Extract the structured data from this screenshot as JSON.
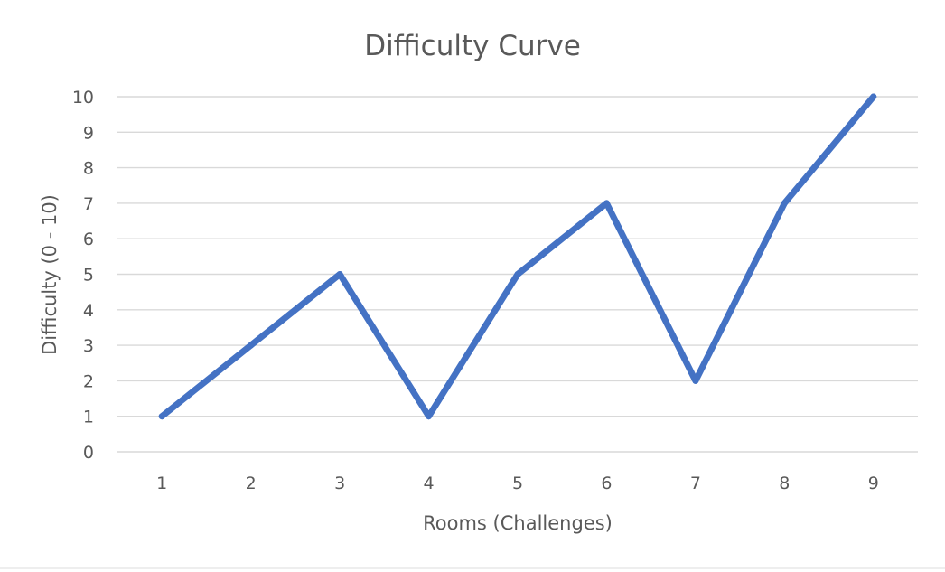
{
  "chart_data": {
    "type": "line",
    "title": "Difficulty Curve",
    "xlabel": "Rooms (Challenges)",
    "ylabel": "Difficulty (0 - 10)",
    "categories": [
      "1",
      "2",
      "3",
      "4",
      "5",
      "6",
      "7",
      "8",
      "9"
    ],
    "series": [
      {
        "values": [
          1,
          3,
          5,
          1,
          5,
          7,
          2,
          7,
          10
        ],
        "color": "#4472c4"
      }
    ],
    "ylim": [
      0,
      10
    ],
    "yticks": [
      "0",
      "1",
      "2",
      "3",
      "4",
      "5",
      "6",
      "7",
      "8",
      "9",
      "10"
    ],
    "grid": true,
    "legend": "none"
  }
}
